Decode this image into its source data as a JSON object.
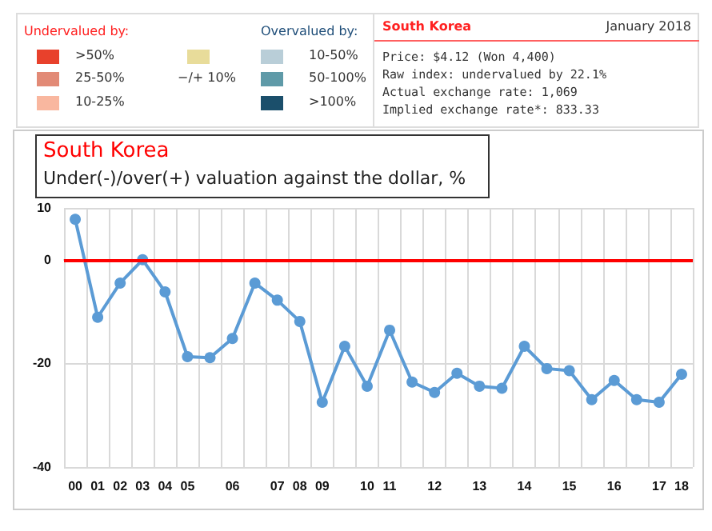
{
  "chart_data": {
    "type": "line",
    "title": "South Korea",
    "subtitle": "Under(-)/over(+) valuation against the dollar, %",
    "categories": [
      "00",
      "01",
      "02",
      "03",
      "04",
      "05",
      null,
      "06",
      null,
      "07",
      "08",
      "09",
      null,
      "10",
      "11",
      null,
      "12",
      null,
      "13",
      null,
      "14",
      null,
      "15",
      null,
      "16",
      null,
      "17",
      "18"
    ],
    "series": [
      {
        "color": "#5b9bd5",
        "values": [
          7.8,
          -11.1,
          -4.5,
          0,
          -6.2,
          -18.7,
          -18.9,
          -15.2,
          -4.5,
          -7.8,
          -11.9,
          -27.5,
          -16.7,
          -24.4,
          -13.6,
          -23.6,
          -25.6,
          -21.9,
          -24.4,
          -24.8,
          -16.7,
          -21.0,
          -21.4,
          -27.0,
          -23.3,
          -27.0,
          -27.5,
          -22.1
        ]
      }
    ],
    "ylim": [
      -40,
      10
    ],
    "yticks": [
      -40,
      -20,
      0,
      10
    ],
    "grid": true,
    "marker": "circle",
    "ref_lines": [
      {
        "axis": "y",
        "value": 0,
        "color": "#ff0000"
      }
    ],
    "annotations": [
      "Undervalued by:",
      ">50%",
      "25-50%",
      "10-25%",
      "−/+ 10%",
      "Overvalued by:",
      "10-50%",
      "50-100%",
      ">100%",
      "South Korea",
      "January 2018",
      "Price: $4.12 (Won 4,400)",
      "Raw index: undervalued by 22.1%",
      "Actual exchange rate: 1,069",
      "Implied exchange rate*: 833.33"
    ]
  }
}
